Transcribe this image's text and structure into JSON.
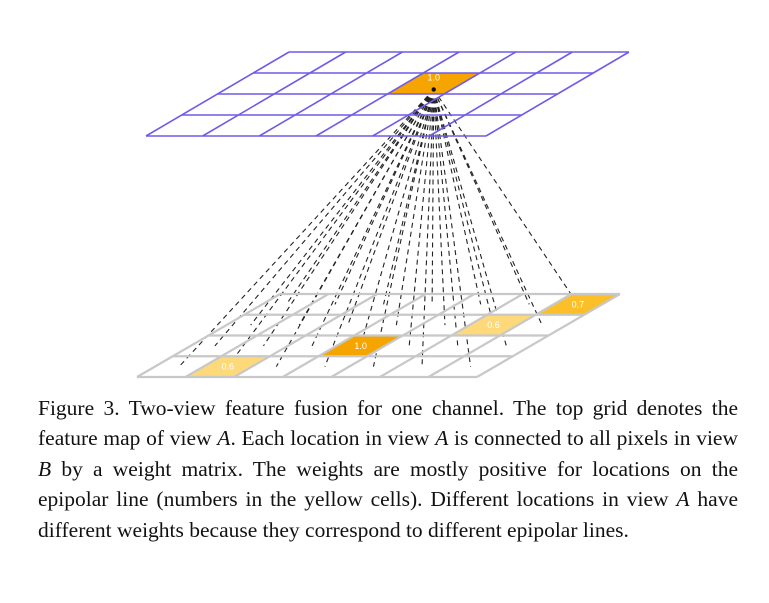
{
  "figure": {
    "top_grid": {
      "highlight_label": "1.0",
      "line_color": "#6e5ce6",
      "highlight_color": "#f5a400"
    },
    "bottom_grid": {
      "line_color": "#c8c8c8",
      "cells": [
        {
          "label": "0.6",
          "weight": 0.6,
          "color": "#fdd97a"
        },
        {
          "label": "1.0",
          "weight": 1.0,
          "color": "#f5a400"
        },
        {
          "label": "0.6",
          "weight": 0.6,
          "color": "#fdd97a"
        },
        {
          "label": "0.7",
          "weight": 0.7,
          "color": "#fbbf2a"
        }
      ]
    }
  },
  "caption": {
    "part1": "Figure 3. Two-view feature fusion for one channel. The top grid denotes the feature map of view ",
    "var_a1": "A",
    "part2": ". Each location in view ",
    "var_a2": "A",
    "part3": " is connected to all pixels in view ",
    "var_b": "B",
    "part4": " by a weight matrix. The weights are mostly positive for locations on the epipolar line (numbers in the yellow cells). Different locations in view ",
    "var_a3": "A",
    "part5": " have different weights because they correspond to different epipolar lines."
  }
}
